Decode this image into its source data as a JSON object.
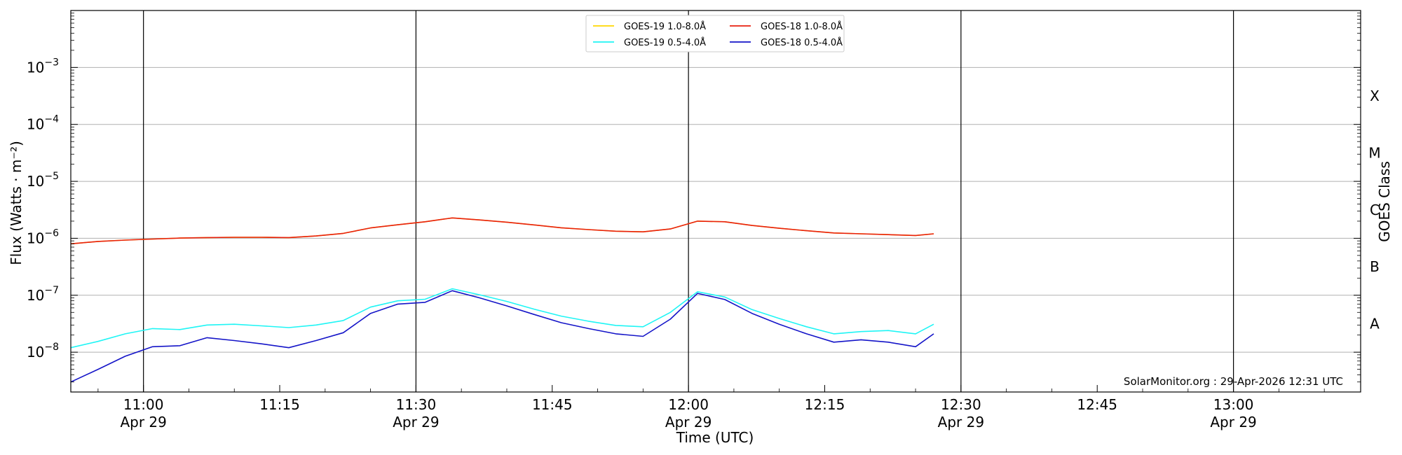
{
  "chart_data": {
    "type": "line",
    "title": "",
    "xlabel": "Time (UTC)",
    "ylabel": "Flux (Watts · m⁻²)",
    "y2label": "GOES Class",
    "yscale": "log",
    "ylim": [
      2e-09,
      0.01
    ],
    "xlim": [
      "2026-04-29T10:52",
      "2026-04-29T13:14"
    ],
    "grid": "horizontal",
    "legend_position": "top-center",
    "credit": "SolarMonitor.org : 29-Apr-2026 12:31 UTC",
    "x_ticks": [
      {
        "time": "2026-04-29T11:00",
        "line1": "11:00",
        "line2": "Apr 29",
        "vline": true
      },
      {
        "time": "2026-04-29T11:15",
        "line1": "11:15",
        "line2": "",
        "vline": false
      },
      {
        "time": "2026-04-29T11:30",
        "line1": "11:30",
        "line2": "Apr 29",
        "vline": true
      },
      {
        "time": "2026-04-29T11:45",
        "line1": "11:45",
        "line2": "",
        "vline": false
      },
      {
        "time": "2026-04-29T12:00",
        "line1": "12:00",
        "line2": "Apr 29",
        "vline": true
      },
      {
        "time": "2026-04-29T12:15",
        "line1": "12:15",
        "line2": "",
        "vline": false
      },
      {
        "time": "2026-04-29T12:30",
        "line1": "12:30",
        "line2": "Apr 29",
        "vline": true
      },
      {
        "time": "2026-04-29T12:45",
        "line1": "12:45",
        "line2": "",
        "vline": false
      },
      {
        "time": "2026-04-29T13:00",
        "line1": "13:00",
        "line2": "Apr 29",
        "vline": true
      }
    ],
    "y_ticks": [
      {
        "value": 1e-08,
        "label": "10",
        "exp": "−8"
      },
      {
        "value": 1e-07,
        "label": "10",
        "exp": "−7"
      },
      {
        "value": 1e-06,
        "label": "10",
        "exp": "−6"
      },
      {
        "value": 1e-05,
        "label": "10",
        "exp": "−5"
      },
      {
        "value": 0.0001,
        "label": "10",
        "exp": "−4"
      },
      {
        "value": 0.001,
        "label": "10",
        "exp": "−3"
      }
    ],
    "goes_classes": [
      {
        "label": "A",
        "value": 3.16e-08
      },
      {
        "label": "B",
        "value": 3.16e-07
      },
      {
        "label": "C",
        "value": 3.16e-06
      },
      {
        "label": "M",
        "value": 3.16e-05
      },
      {
        "label": "X",
        "value": 0.000316
      }
    ],
    "x": [
      "10:52",
      "10:55",
      "10:58",
      "11:01",
      "11:04",
      "11:07",
      "11:10",
      "11:13",
      "11:16",
      "11:19",
      "11:22",
      "11:25",
      "11:28",
      "11:31",
      "11:34",
      "11:37",
      "11:40",
      "11:43",
      "11:46",
      "11:49",
      "11:52",
      "11:55",
      "11:58",
      "12:01",
      "12:04",
      "12:07",
      "12:10",
      "12:13",
      "12:16",
      "12:19",
      "12:22",
      "12:25",
      "12:27"
    ],
    "series": [
      {
        "name": "GOES-19 1.0-8.0Å",
        "color": "#ffd700",
        "values": [
          8e-07,
          8.8e-07,
          9.3e-07,
          9.7e-07,
          1.01e-06,
          1.03e-06,
          1.04e-06,
          1.04e-06,
          1.03e-06,
          1.1e-06,
          1.22e-06,
          1.52e-06,
          1.73e-06,
          1.95e-06,
          2.28e-06,
          2.1e-06,
          1.92e-06,
          1.72e-06,
          1.53e-06,
          1.42e-06,
          1.33e-06,
          1.3e-06,
          1.46e-06,
          2e-06,
          1.95e-06,
          1.68e-06,
          1.5e-06,
          1.36e-06,
          1.24e-06,
          1.2e-06,
          1.16e-06,
          1.12e-06,
          1.2e-06
        ]
      },
      {
        "name": "GOES-18 1.0-8.0Å",
        "color": "#e8200f",
        "values": [
          8e-07,
          8.8e-07,
          9.3e-07,
          9.7e-07,
          1.01e-06,
          1.03e-06,
          1.04e-06,
          1.04e-06,
          1.03e-06,
          1.1e-06,
          1.22e-06,
          1.52e-06,
          1.73e-06,
          1.95e-06,
          2.28e-06,
          2.1e-06,
          1.92e-06,
          1.72e-06,
          1.53e-06,
          1.42e-06,
          1.33e-06,
          1.3e-06,
          1.46e-06,
          2e-06,
          1.95e-06,
          1.68e-06,
          1.5e-06,
          1.36e-06,
          1.24e-06,
          1.2e-06,
          1.16e-06,
          1.12e-06,
          1.2e-06
        ]
      },
      {
        "name": "GOES-19 0.5-4.0Å",
        "color": "#1ff5f5",
        "values": [
          1.2e-08,
          1.55e-08,
          2.1e-08,
          2.6e-08,
          2.5e-08,
          3e-08,
          3.1e-08,
          2.9e-08,
          2.7e-08,
          3e-08,
          3.6e-08,
          6.2e-08,
          8e-08,
          8.5e-08,
          1.3e-07,
          1.02e-07,
          7.8e-08,
          5.7e-08,
          4.3e-08,
          3.5e-08,
          2.95e-08,
          2.8e-08,
          5e-08,
          1.15e-07,
          9.3e-08,
          5.6e-08,
          3.9e-08,
          2.8e-08,
          2.1e-08,
          2.3e-08,
          2.4e-08,
          2.1e-08,
          3.1e-08
        ]
      },
      {
        "name": "GOES-18 0.5-4.0Å",
        "color": "#1414c8",
        "values": [
          3e-09,
          5e-09,
          8.5e-09,
          1.25e-08,
          1.3e-08,
          1.8e-08,
          1.6e-08,
          1.4e-08,
          1.2e-08,
          1.6e-08,
          2.2e-08,
          4.8e-08,
          7e-08,
          7.5e-08,
          1.2e-07,
          9e-08,
          6.5e-08,
          4.6e-08,
          3.3e-08,
          2.6e-08,
          2.1e-08,
          1.9e-08,
          3.8e-08,
          1.08e-07,
          8.4e-08,
          4.8e-08,
          3.1e-08,
          2.1e-08,
          1.5e-08,
          1.65e-08,
          1.5e-08,
          1.25e-08,
          2.1e-08
        ]
      }
    ],
    "legend_order": [
      0,
      2,
      1,
      3
    ]
  }
}
